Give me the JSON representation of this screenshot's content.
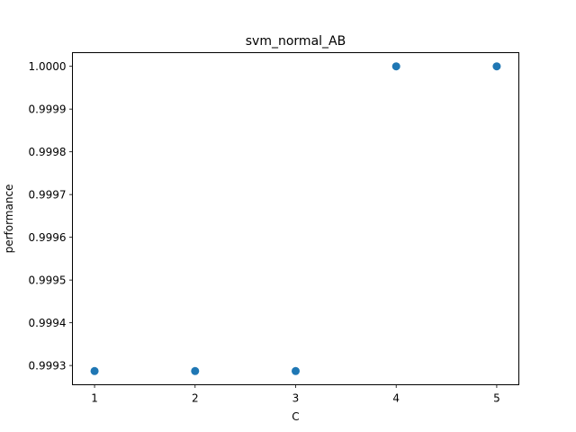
{
  "chart_data": {
    "type": "scatter",
    "title": "svm_normal_AB",
    "xlabel": "C",
    "ylabel": "performance",
    "x": [
      1,
      2,
      3,
      4,
      5
    ],
    "y": [
      0.999287,
      0.999287,
      0.999287,
      1.0,
      1.0
    ],
    "xlim": [
      0.78,
      5.22
    ],
    "ylim": [
      0.999255,
      1.000032
    ],
    "xticks": [
      1,
      2,
      3,
      4,
      5
    ],
    "xtick_labels": [
      "1",
      "2",
      "3",
      "4",
      "5"
    ],
    "yticks": [
      0.9993,
      0.9994,
      0.9995,
      0.9996,
      0.9997,
      0.9998,
      0.9999,
      1.0
    ],
    "ytick_labels": [
      "0.9993",
      "0.9994",
      "0.9995",
      "0.9996",
      "0.9997",
      "0.9998",
      "0.9999",
      "1.0000"
    ],
    "marker_color": "#1f77b4",
    "grid": false,
    "legend": false
  }
}
